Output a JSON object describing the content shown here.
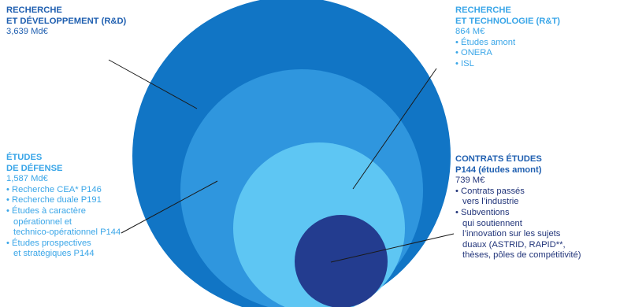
{
  "colors": {
    "outer_circle": "#1175c5",
    "second_circle": "#2f96de",
    "third_circle": "#5ec6f3",
    "inner_circle": "#233c8f",
    "leader_line": "#1a1a1a",
    "rd_text": "#1f5fb0",
    "rt_text": "#3aa6e8",
    "etudes_text": "#3aa6e8",
    "contrats_title": "#1f5fb0",
    "contrats_text": "#22357a"
  },
  "rd": {
    "title1": "RECHERCHE",
    "title2": "ET DÉVELOPPEMENT (R&D)",
    "amount": "3,639 Md€"
  },
  "rt": {
    "title1": "RECHERCHE",
    "title2": "ET TECHNOLOGIE (R&T)",
    "amount": "864 M€",
    "items": [
      "• Études amont",
      "• ONERA",
      "• ISL"
    ]
  },
  "etudes": {
    "title1": "ÉTUDES",
    "title2": "DE DÉFENSE",
    "amount": "1,587 Md€",
    "lines": [
      "• Recherche CEA* P146",
      "• Recherche duale P191",
      "• Études à caractère",
      "opérationnel et",
      "technico-opérationnel P144",
      "• Études prospectives",
      "et stratégiques P144"
    ]
  },
  "contrats": {
    "title1": "CONTRATS ÉTUDES",
    "title2": "P144 (études amont)",
    "amount": "739 M€",
    "lines": [
      "• Contrats passés",
      "vers l’industrie",
      "• Subventions",
      "qui soutiennent",
      "l’innovation sur les sujets",
      "duaux (ASTRID, RAPID**,",
      "thèses, pôles de compétitivité)"
    ]
  }
}
